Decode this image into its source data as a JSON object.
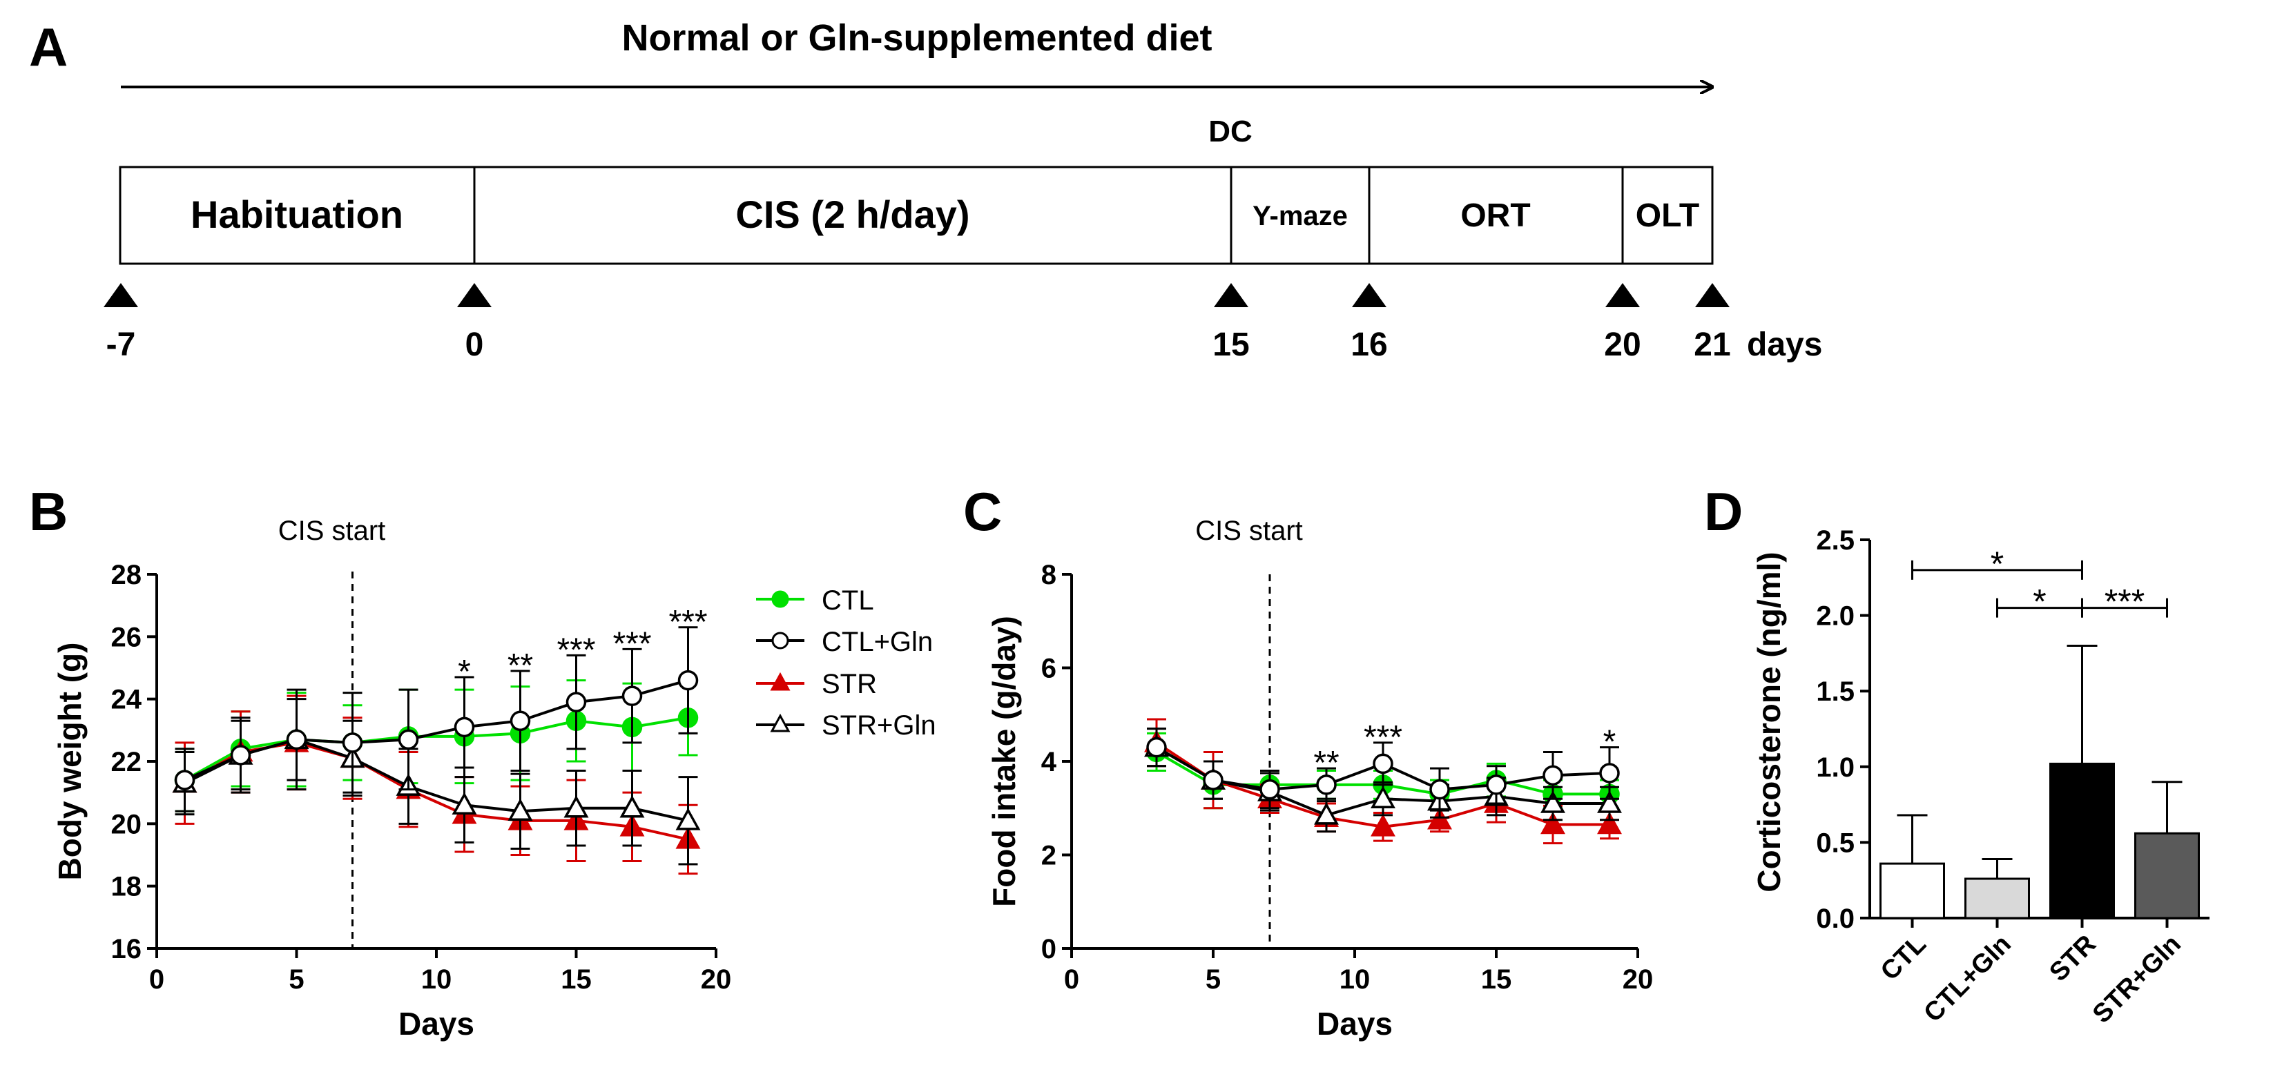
{
  "panel_a": {
    "label": "A",
    "diet_text": "Normal or Gln-supplemented diet",
    "dc_text": "DC",
    "segments": [
      "Habituation",
      "CIS (2 h/day)",
      "Y-maze",
      "ORT",
      "OLT"
    ],
    "markers": [
      "-7",
      "0",
      "15",
      "16",
      "20",
      "21"
    ],
    "days_label": "days"
  },
  "chart_data": [
    {
      "panel": "B",
      "type": "line",
      "title": "",
      "annotation": "CIS start",
      "xlabel": "Days",
      "ylabel": "Body weight (g)",
      "xlim": [
        0,
        20
      ],
      "ylim": [
        16,
        28
      ],
      "xticks": [
        0,
        5,
        10,
        15,
        20
      ],
      "yticks": [
        16,
        18,
        20,
        22,
        24,
        26,
        28
      ],
      "vline_x": 7,
      "x": [
        1,
        3,
        5,
        7,
        9,
        11,
        13,
        15,
        17,
        19
      ],
      "series": [
        {
          "name": "CTL",
          "color": "#00e000",
          "marker": "circle-filled",
          "values": [
            21.4,
            22.4,
            22.7,
            22.6,
            22.8,
            22.8,
            22.9,
            23.3,
            23.1,
            23.4
          ],
          "errors": [
            1.0,
            1.2,
            1.5,
            1.2,
            1.5,
            1.5,
            1.5,
            1.3,
            1.4,
            1.2
          ]
        },
        {
          "name": "CTL+Gln",
          "color": "#000000",
          "marker": "circle-open",
          "values": [
            21.4,
            22.2,
            22.7,
            22.6,
            22.7,
            23.1,
            23.3,
            23.9,
            24.1,
            24.6
          ],
          "errors": [
            1.0,
            1.1,
            1.6,
            1.6,
            1.6,
            1.6,
            1.6,
            1.5,
            1.5,
            1.7
          ]
        },
        {
          "name": "STR",
          "color": "#d40000",
          "marker": "triangle-filled",
          "values": [
            21.3,
            22.3,
            22.6,
            22.1,
            21.1,
            20.3,
            20.1,
            20.1,
            19.9,
            19.5
          ],
          "errors": [
            1.3,
            1.3,
            1.5,
            1.3,
            1.2,
            1.2,
            1.1,
            1.3,
            1.1,
            1.1
          ]
        },
        {
          "name": "STR+Gln",
          "color": "#000000",
          "marker": "triangle-open",
          "values": [
            21.3,
            22.2,
            22.7,
            22.1,
            21.2,
            20.6,
            20.4,
            20.5,
            20.5,
            20.1
          ],
          "errors": [
            1.0,
            1.2,
            1.3,
            1.2,
            1.2,
            1.2,
            1.2,
            1.2,
            1.2,
            1.4
          ]
        }
      ],
      "significance": [
        {
          "x": 11,
          "label": "*"
        },
        {
          "x": 13,
          "label": "**"
        },
        {
          "x": 15,
          "label": "***"
        },
        {
          "x": 17,
          "label": "***"
        },
        {
          "x": 19,
          "label": "***"
        }
      ]
    },
    {
      "panel": "C",
      "type": "line",
      "title": "",
      "annotation": "CIS start",
      "xlabel": "Days",
      "ylabel": "Food intake (g/day)",
      "xlim": [
        0,
        20
      ],
      "ylim": [
        0,
        8
      ],
      "xticks": [
        0,
        5,
        10,
        15,
        20
      ],
      "yticks": [
        0,
        2,
        4,
        6,
        8
      ],
      "vline_x": 7,
      "x": [
        3,
        5,
        7,
        9,
        11,
        13,
        15,
        17,
        19
      ],
      "series": [
        {
          "name": "CTL",
          "color": "#00e000",
          "marker": "circle-filled",
          "values": [
            4.2,
            3.5,
            3.5,
            3.5,
            3.5,
            3.3,
            3.6,
            3.3,
            3.3
          ],
          "errors": [
            0.4,
            0.5,
            0.3,
            0.3,
            0.3,
            0.3,
            0.35,
            0.3,
            0.3
          ]
        },
        {
          "name": "CTL+Gln",
          "color": "#000000",
          "marker": "circle-open",
          "values": [
            4.3,
            3.6,
            3.4,
            3.5,
            3.95,
            3.4,
            3.5,
            3.7,
            3.75
          ],
          "errors": [
            0.4,
            0.4,
            0.4,
            0.35,
            0.45,
            0.45,
            0.4,
            0.5,
            0.55
          ]
        },
        {
          "name": "STR",
          "color": "#d40000",
          "marker": "triangle-filled",
          "values": [
            4.4,
            3.6,
            3.2,
            2.8,
            2.6,
            2.75,
            3.1,
            2.65,
            2.65
          ],
          "errors": [
            0.5,
            0.6,
            0.3,
            0.3,
            0.3,
            0.25,
            0.4,
            0.4,
            0.3
          ]
        },
        {
          "name": "STR+Gln",
          "color": "#000000",
          "marker": "triangle-open",
          "values": [
            4.3,
            3.6,
            3.35,
            2.85,
            3.2,
            3.15,
            3.25,
            3.1,
            3.1
          ],
          "errors": [
            0.4,
            0.4,
            0.4,
            0.35,
            0.35,
            0.35,
            0.4,
            0.35,
            0.35
          ]
        }
      ],
      "significance": [
        {
          "x": 9,
          "label": "**"
        },
        {
          "x": 11,
          "label": "***"
        },
        {
          "x": 19,
          "label": "*"
        }
      ]
    },
    {
      "panel": "D",
      "type": "bar",
      "title": "",
      "xlabel": "",
      "ylabel": "Corticosterone (ng/ml)",
      "ylim": [
        0,
        2.5
      ],
      "yticks": [
        "0.0",
        "0.5",
        "1.0",
        "1.5",
        "2.0",
        "2.5"
      ],
      "categories": [
        "CTL",
        "CTL+Gln",
        "STR",
        "STR+Gln"
      ],
      "values": [
        0.36,
        0.26,
        1.02,
        0.56
      ],
      "errors": [
        0.32,
        0.13,
        0.78,
        0.34
      ],
      "colors": [
        "#ffffff",
        "#d9d9d9",
        "#000000",
        "#5a5a5a"
      ],
      "comparisons": [
        {
          "from": 0,
          "to": 2,
          "y": 2.3,
          "label": "*"
        },
        {
          "from": 1,
          "to": 2,
          "y": 2.05,
          "label": "*"
        },
        {
          "from": 2,
          "to": 3,
          "y": 2.05,
          "label": "***"
        }
      ]
    }
  ],
  "panel_labels": {
    "b": "B",
    "c": "C",
    "d": "D"
  }
}
